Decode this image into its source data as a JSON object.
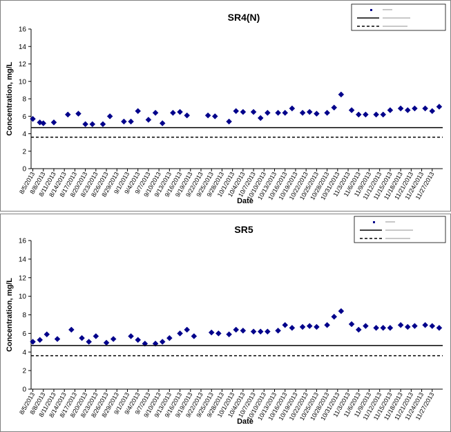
{
  "chart_data": [
    {
      "type": "scatter",
      "title": "SR4(N)",
      "xlabel": "Date",
      "ylabel": "Concentration, mg/L",
      "ylim": [
        0,
        16
      ],
      "y_ticks": [
        "0",
        "2",
        "4",
        "6",
        "8",
        "10",
        "12",
        "14",
        "16"
      ],
      "x_tick_labels": [
        "8/5/2013",
        "8/8/2013",
        "8/11/2013",
        "8/14/2013",
        "8/17/2013",
        "8/20/2013",
        "8/23/2013",
        "8/26/2013",
        "8/29/2013",
        "9/1/2013",
        "9/4/2013",
        "9/7/2013",
        "9/10/2013",
        "9/13/2013",
        "9/16/2013",
        "9/19/2013",
        "9/22/2013",
        "9/25/2013",
        "9/28/2013",
        "10/1/2013",
        "10/4/2013",
        "10/7/2013",
        "10/10/2013",
        "10/13/2013",
        "10/16/2013",
        "10/19/2013",
        "10/22/2013",
        "10/25/2013",
        "10/28/2013",
        "10/31/2013",
        "11/3/2013",
        "11/6/2013",
        "11/9/2013",
        "11/12/2013",
        "11/15/2013",
        "11/18/2013",
        "11/21/2013",
        "11/24/2013",
        "11/27/2013"
      ],
      "grid": false,
      "legend_position": "top-right",
      "series": [
        {
          "name": "",
          "kind": "points",
          "marker": "diamond",
          "color": "#00008B",
          "points": [
            [
              "8/5/2013",
              5.7
            ],
            [
              "8/7/2013",
              5.3
            ],
            [
              "8/8/2013",
              5.2
            ],
            [
              "8/11/2013",
              5.3
            ],
            [
              "8/15/2013",
              6.2
            ],
            [
              "8/18/2013",
              6.3
            ],
            [
              "8/20/2013",
              5.1
            ],
            [
              "8/22/2013",
              5.1
            ],
            [
              "8/25/2013",
              5.1
            ],
            [
              "8/27/2013",
              6.0
            ],
            [
              "8/31/2013",
              5.4
            ],
            [
              "9/2/2013",
              5.4
            ],
            [
              "9/4/2013",
              6.6
            ],
            [
              "9/7/2013",
              5.6
            ],
            [
              "9/9/2013",
              6.4
            ],
            [
              "9/11/2013",
              5.2
            ],
            [
              "9/14/2013",
              6.4
            ],
            [
              "9/16/2013",
              6.5
            ],
            [
              "9/18/2013",
              6.1
            ],
            [
              "9/24/2013",
              6.1
            ],
            [
              "9/26/2013",
              6.0
            ],
            [
              "9/30/2013",
              5.4
            ],
            [
              "10/2/2013",
              6.6
            ],
            [
              "10/4/2013",
              6.5
            ],
            [
              "10/7/2013",
              6.5
            ],
            [
              "10/9/2013",
              5.8
            ],
            [
              "10/11/2013",
              6.4
            ],
            [
              "10/14/2013",
              6.4
            ],
            [
              "10/16/2013",
              6.4
            ],
            [
              "10/18/2013",
              6.9
            ],
            [
              "10/21/2013",
              6.4
            ],
            [
              "10/23/2013",
              6.5
            ],
            [
              "10/25/2013",
              6.3
            ],
            [
              "10/28/2013",
              6.4
            ],
            [
              "10/30/2013",
              7.0
            ],
            [
              "11/1/2013",
              8.5
            ],
            [
              "11/4/2013",
              6.7
            ],
            [
              "11/6/2013",
              6.2
            ],
            [
              "11/8/2013",
              6.2
            ],
            [
              "11/11/2013",
              6.2
            ],
            [
              "11/13/2013",
              6.2
            ],
            [
              "11/15/2013",
              6.7
            ],
            [
              "11/18/2013",
              6.9
            ],
            [
              "11/20/2013",
              6.7
            ],
            [
              "11/22/2013",
              6.9
            ],
            [
              "11/25/2013",
              6.9
            ],
            [
              "11/27/2013",
              6.6
            ],
            [
              "11/29/2013",
              7.1
            ]
          ]
        },
        {
          "name": "",
          "kind": "hline",
          "style": "solid",
          "value": 4.7
        },
        {
          "name": "",
          "kind": "hline",
          "style": "dashed",
          "value": 3.6
        }
      ]
    },
    {
      "type": "scatter",
      "title": "SR5",
      "xlabel": "Date",
      "ylabel": "Concentration, mg/L",
      "ylim": [
        0,
        16
      ],
      "y_ticks": [
        "0",
        "2",
        "4",
        "6",
        "8",
        "10",
        "12",
        "14",
        "16"
      ],
      "x_tick_labels": [
        "8/5/2013",
        "8/8/2013",
        "8/11/2013",
        "8/14/2013",
        "8/17/2013",
        "8/20/2013",
        "8/23/2013",
        "8/26/2013",
        "8/29/2013",
        "9/1/2013",
        "9/4/2013",
        "9/7/2013",
        "9/10/2013",
        "9/13/2013",
        "9/16/2013",
        "9/19/2013",
        "9/22/2013",
        "9/25/2013",
        "9/28/2013",
        "10/1/2013",
        "10/4/2013",
        "10/7/2013",
        "10/10/2013",
        "10/13/2013",
        "10/16/2013",
        "10/19/2013",
        "10/22/2013",
        "10/25/2013",
        "10/28/2013",
        "10/31/2013",
        "11/3/2013",
        "11/6/2013",
        "11/9/2013",
        "11/12/2013",
        "11/15/2013",
        "11/18/2013",
        "11/21/2013",
        "11/24/2013",
        "11/27/2013"
      ],
      "grid": false,
      "legend_position": "top-right",
      "series": [
        {
          "name": "",
          "kind": "points",
          "marker": "diamond",
          "color": "#00008B",
          "points": [
            [
              "8/5/2013",
              5.1
            ],
            [
              "8/7/2013",
              5.3
            ],
            [
              "8/9/2013",
              5.9
            ],
            [
              "8/12/2013",
              5.4
            ],
            [
              "8/16/2013",
              6.4
            ],
            [
              "8/19/2013",
              5.5
            ],
            [
              "8/21/2013",
              5.1
            ],
            [
              "8/23/2013",
              5.7
            ],
            [
              "8/26/2013",
              5.0
            ],
            [
              "8/28/2013",
              5.4
            ],
            [
              "9/2/2013",
              5.7
            ],
            [
              "9/4/2013",
              5.3
            ],
            [
              "9/6/2013",
              4.9
            ],
            [
              "9/9/2013",
              4.9
            ],
            [
              "9/11/2013",
              5.1
            ],
            [
              "9/13/2013",
              5.5
            ],
            [
              "9/16/2013",
              6.0
            ],
            [
              "9/18/2013",
              6.4
            ],
            [
              "9/20/2013",
              5.7
            ],
            [
              "9/25/2013",
              6.1
            ],
            [
              "9/27/2013",
              6.0
            ],
            [
              "9/30/2013",
              5.9
            ],
            [
              "10/2/2013",
              6.4
            ],
            [
              "10/4/2013",
              6.3
            ],
            [
              "10/7/2013",
              6.2
            ],
            [
              "10/9/2013",
              6.2
            ],
            [
              "10/11/2013",
              6.2
            ],
            [
              "10/14/2013",
              6.3
            ],
            [
              "10/16/2013",
              6.9
            ],
            [
              "10/18/2013",
              6.6
            ],
            [
              "10/21/2013",
              6.7
            ],
            [
              "10/23/2013",
              6.8
            ],
            [
              "10/25/2013",
              6.7
            ],
            [
              "10/28/2013",
              6.9
            ],
            [
              "10/30/2013",
              7.8
            ],
            [
              "11/1/2013",
              8.4
            ],
            [
              "11/4/2013",
              7.0
            ],
            [
              "11/6/2013",
              6.4
            ],
            [
              "11/8/2013",
              6.8
            ],
            [
              "11/11/2013",
              6.6
            ],
            [
              "11/13/2013",
              6.6
            ],
            [
              "11/15/2013",
              6.6
            ],
            [
              "11/18/2013",
              6.9
            ],
            [
              "11/20/2013",
              6.7
            ],
            [
              "11/22/2013",
              6.8
            ],
            [
              "11/25/2013",
              6.9
            ],
            [
              "11/27/2013",
              6.8
            ],
            [
              "11/29/2013",
              6.6
            ]
          ]
        },
        {
          "name": "",
          "kind": "hline",
          "style": "solid",
          "value": 4.7
        },
        {
          "name": "",
          "kind": "hline",
          "style": "dashed",
          "value": 3.6
        }
      ]
    }
  ]
}
